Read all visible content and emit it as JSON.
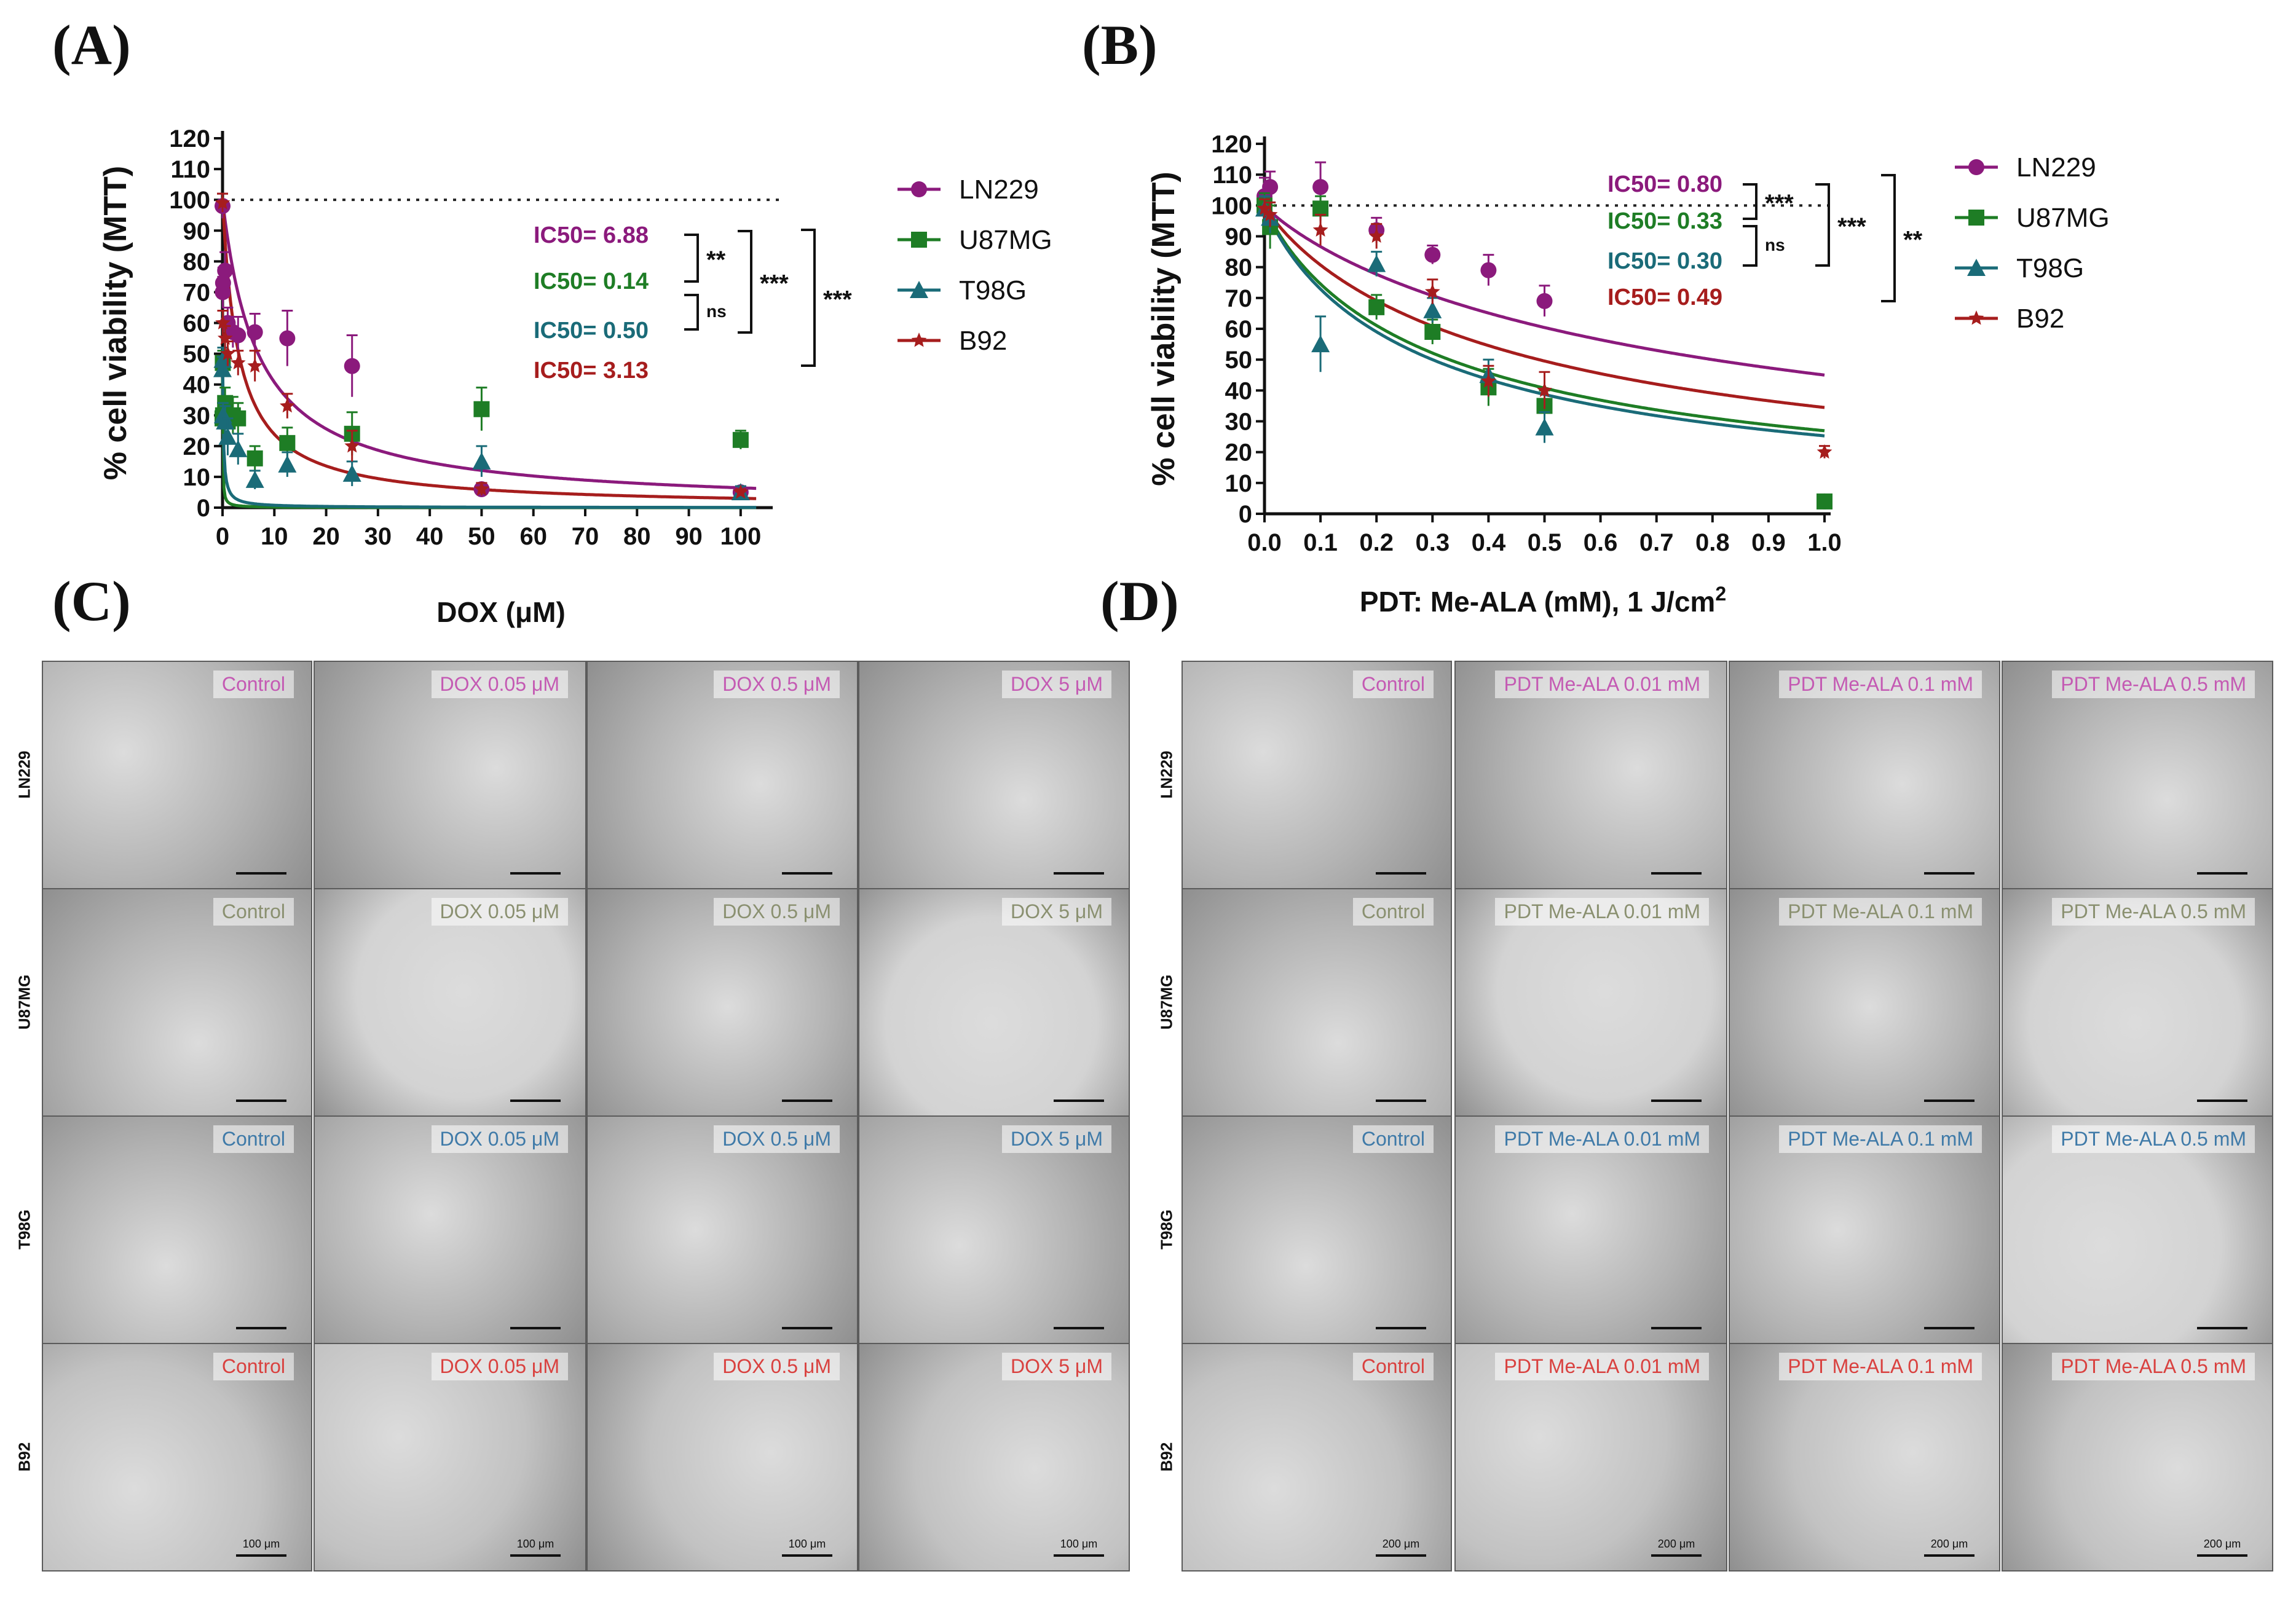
{
  "panel_labels": {
    "a": "(A)",
    "b": "(B)",
    "c": "(C)",
    "d": "(D)"
  },
  "colors": {
    "LN229": "#8b1a7c",
    "U87MG": "#1e7d25",
    "T98G": "#1a6b78",
    "B92": "#a61d1d",
    "LN229_tag": "#c45ab3",
    "U87MG_tag": "#8a9070",
    "T98G_tag": "#3f7aa8",
    "B92_tag": "#d9413f"
  },
  "chart_data": [
    {
      "type": "line",
      "panel": "A",
      "xlabel": "DOX (μM)",
      "ylabel": "% cell viability (MTT)",
      "xlim": [
        0,
        105
      ],
      "ylim": [
        0,
        120
      ],
      "xticks": [
        "0",
        "10",
        "20",
        "30",
        "40",
        "50",
        "60",
        "70",
        "80",
        "90",
        "100"
      ],
      "yticks": [
        "0",
        "10",
        "20",
        "30",
        "40",
        "50",
        "60",
        "70",
        "80",
        "90",
        "100",
        "110",
        "120"
      ],
      "reference_line": 100,
      "series": [
        {
          "name": "LN229",
          "marker": "circle",
          "ic50": 6.88,
          "points": [
            [
              0,
              98,
              4
            ],
            [
              0.05,
              70,
              5
            ],
            [
              0.1,
              73,
              5
            ],
            [
              0.5,
              77,
              6
            ],
            [
              1,
              60,
              5
            ],
            [
              2,
              57,
              5
            ],
            [
              3,
              56,
              6
            ],
            [
              6.25,
              57,
              6
            ],
            [
              12.5,
              55,
              9
            ],
            [
              25,
              46,
              10
            ],
            [
              50,
              6,
              2
            ],
            [
              100,
              5,
              2
            ]
          ]
        },
        {
          "name": "U87MG",
          "marker": "square",
          "ic50": 0.14,
          "points": [
            [
              0,
              29,
              5
            ],
            [
              0.05,
              47,
              4
            ],
            [
              0.1,
              30,
              6
            ],
            [
              0.5,
              34,
              5
            ],
            [
              1,
              28,
              5
            ],
            [
              2,
              30,
              6
            ],
            [
              3,
              29,
              5
            ],
            [
              6.25,
              16,
              4
            ],
            [
              12.5,
              21,
              5
            ],
            [
              25,
              24,
              7
            ],
            [
              50,
              32,
              7
            ],
            [
              100,
              22,
              3
            ]
          ]
        },
        {
          "name": "T98G",
          "marker": "triangle",
          "ic50": 0.5,
          "points": [
            [
              0,
              45,
              4
            ],
            [
              0.05,
              48,
              4
            ],
            [
              0.1,
              30,
              4
            ],
            [
              0.5,
              28,
              5
            ],
            [
              1,
              23,
              6
            ],
            [
              3,
              19,
              5
            ],
            [
              6.25,
              9,
              3
            ],
            [
              12.5,
              14,
              4
            ],
            [
              25,
              11,
              4
            ],
            [
              50,
              15,
              5
            ],
            [
              100,
              5,
              2
            ]
          ]
        },
        {
          "name": "B92",
          "marker": "star",
          "ic50": 3.13,
          "points": [
            [
              0,
              99,
              3
            ],
            [
              0.05,
              60,
              4
            ],
            [
              0.5,
              55,
              4
            ],
            [
              1,
              50,
              4
            ],
            [
              3,
              47,
              4
            ],
            [
              6.25,
              46,
              5
            ],
            [
              12.5,
              33,
              4
            ],
            [
              25,
              20,
              5
            ],
            [
              50,
              6,
              2
            ],
            [
              100,
              5,
              1
            ]
          ]
        }
      ],
      "ic50_labels": [
        "IC50= 6.88",
        "IC50= 0.14",
        "IC50= 0.50",
        "IC50= 3.13"
      ],
      "significance": [
        "**",
        "ns",
        "***",
        "***"
      ]
    },
    {
      "type": "line",
      "panel": "B",
      "xlabel": "PDT: Me-ALA (mM), 1 J/cm",
      "xlabel_sup": "2",
      "ylabel": "% cell viability (MTT)",
      "xlim": [
        0,
        1.0
      ],
      "ylim": [
        0,
        120
      ],
      "xticks": [
        "0.0",
        "0.1",
        "0.2",
        "0.3",
        "0.4",
        "0.5",
        "0.6",
        "0.7",
        "0.8",
        "0.9",
        "1.0"
      ],
      "yticks": [
        "0",
        "10",
        "20",
        "30",
        "40",
        "50",
        "60",
        "70",
        "80",
        "90",
        "100",
        "110",
        "120"
      ],
      "reference_line": 100,
      "series": [
        {
          "name": "LN229",
          "marker": "circle",
          "ic50": 0.8,
          "points": [
            [
              0,
              103,
              6
            ],
            [
              0.01,
              106,
              5
            ],
            [
              0.1,
              106,
              8
            ],
            [
              0.2,
              92,
              4
            ],
            [
              0.3,
              84,
              3
            ],
            [
              0.4,
              79,
              5
            ],
            [
              0.5,
              69,
              5
            ],
            [
              1.0,
              4,
              2
            ]
          ]
        },
        {
          "name": "U87MG",
          "marker": "square",
          "ic50": 0.33,
          "points": [
            [
              0,
              100,
              4
            ],
            [
              0.01,
              93,
              7
            ],
            [
              0.1,
              99,
              4
            ],
            [
              0.2,
              67,
              4
            ],
            [
              0.3,
              59,
              4
            ],
            [
              0.4,
              41,
              6
            ],
            [
              0.5,
              35,
              5
            ],
            [
              1.0,
              4,
              2
            ]
          ]
        },
        {
          "name": "T98G",
          "marker": "triangle",
          "ic50": 0.3,
          "points": [
            [
              0,
              99,
              4
            ],
            [
              0.01,
              96,
              5
            ],
            [
              0.1,
              55,
              9
            ],
            [
              0.2,
              81,
              4
            ],
            [
              0.3,
              66,
              4
            ],
            [
              0.4,
              45,
              5
            ],
            [
              0.5,
              28,
              5
            ]
          ]
        },
        {
          "name": "B92",
          "marker": "star",
          "ic50": 0.49,
          "points": [
            [
              0,
              99,
              3
            ],
            [
              0.01,
              97,
              4
            ],
            [
              0.1,
              92,
              5
            ],
            [
              0.2,
              90,
              4
            ],
            [
              0.3,
              72,
              4
            ],
            [
              0.4,
              43,
              5
            ],
            [
              0.5,
              40,
              6
            ],
            [
              1.0,
              20,
              2
            ]
          ]
        }
      ],
      "ic50_labels": [
        "IC50= 0.80",
        "IC50= 0.33",
        "IC50= 0.30",
        "IC50= 0.49"
      ],
      "significance": [
        "***",
        "ns",
        "***",
        "**"
      ]
    }
  ],
  "legend": [
    "LN229",
    "U87MG",
    "T98G",
    "B92"
  ],
  "panel_c": {
    "rows": [
      "LN229",
      "U87MG",
      "T98G",
      "B92"
    ],
    "columns": [
      "Control",
      "DOX 0.05 μM",
      "DOX 0.5 μM",
      "DOX 5 μM"
    ],
    "scale_bar": "100 μm"
  },
  "panel_d": {
    "rows": [
      "LN229",
      "U87MG",
      "T98G",
      "B92"
    ],
    "columns": [
      "Control",
      "PDT Me-ALA 0.01 mM",
      "PDT Me-ALA 0.1 mM",
      "PDT Me-ALA 0.5 mM"
    ],
    "scale_bar": "200 μm"
  }
}
